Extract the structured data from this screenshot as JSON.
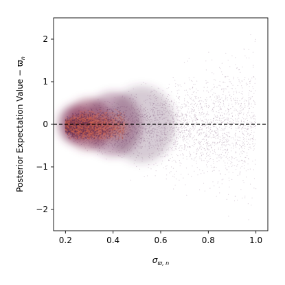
{
  "chart_data": {
    "type": "scatter",
    "xlabel": "σ",
    "xlabel_sub": "ϖ, n",
    "ylabel": "Posterior Expectation Value − ϖ",
    "ylabel_sub": "n",
    "xlim": [
      0.15,
      1.05
    ],
    "ylim": [
      -2.5,
      2.5
    ],
    "x_ticks": [
      0.2,
      0.4,
      0.6,
      0.8,
      1.0
    ],
    "x_tick_labels": [
      "0.2",
      "0.4",
      "0.6",
      "0.8",
      "1.0"
    ],
    "y_ticks": [
      -2,
      -1,
      0,
      1,
      2
    ],
    "y_tick_labels": [
      "−2",
      "−1",
      "0",
      "1",
      "2"
    ],
    "reference_line": {
      "y": 0,
      "style": "dashed",
      "color": "#000000"
    },
    "grid": false,
    "density": {
      "x_range": [
        0.2,
        1.0
      ],
      "peak_x": 0.3,
      "center_y": 0.0,
      "dense_color": "#d4634b",
      "sparse_color": "#5a2a55"
    },
    "series": []
  }
}
